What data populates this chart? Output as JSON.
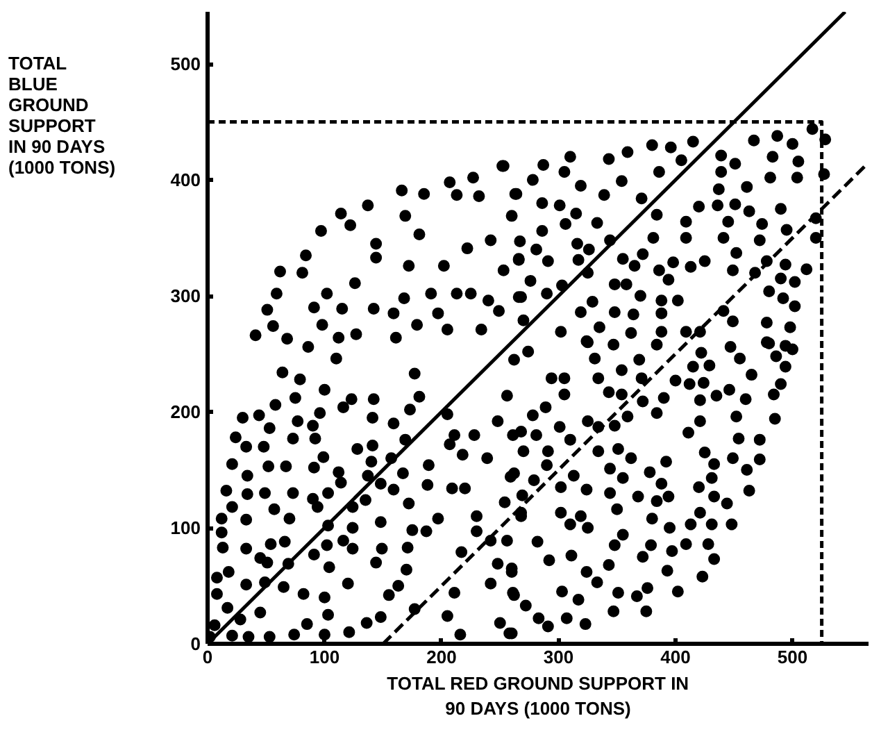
{
  "chart_data": {
    "type": "scatter",
    "xlabel": "TOTAL RED GROUND SUPPORT IN\n90 DAYS (1000 TONS)",
    "ylabel": "TOTAL\nBLUE\nGROUND\nSUPPORT\nIN 90 DAYS\n(1000 TONS)",
    "xlim": [
      0,
      565
    ],
    "ylim": [
      0,
      545
    ],
    "xticks": [
      0,
      100,
      200,
      300,
      400,
      500
    ],
    "yticks": [
      0,
      100,
      200,
      300,
      400,
      500
    ],
    "series": [
      {
        "marker": "circle",
        "color": "#000000",
        "x": [
          252,
          227,
          207,
          166,
          137,
          114,
          97,
          84,
          62,
          59,
          51,
          41,
          56,
          81,
          122,
          144,
          169,
          185,
          213,
          232,
          263,
          260,
          242,
          222,
          202,
          181,
          172,
          144,
          126,
          102,
          91,
          115,
          142,
          159,
          168,
          191,
          213,
          225,
          240,
          249,
          266,
          266,
          197,
          179,
          98,
          68,
          86,
          112,
          127,
          161,
          205,
          234,
          415,
          396,
          380,
          359,
          343,
          310,
          287,
          253,
          467,
          487,
          500,
          517,
          528,
          483,
          505,
          527,
          504,
          481,
          461,
          439,
          451,
          439,
          437,
          405,
          386,
          371,
          354,
          339,
          319,
          305,
          278,
          264,
          286,
          301,
          315,
          306,
          286,
          267,
          266,
          281,
          291,
          316,
          326,
          317,
          333,
          344,
          355,
          365,
          372,
          381,
          384,
          409,
          409,
          420,
          436,
          451,
          463,
          490,
          445,
          474,
          495,
          520,
          520,
          441,
          452,
          472,
          478,
          494,
          512,
          490,
          502,
          480,
          502,
          492,
          468,
          449,
          425,
          413,
          398,
          386,
          394,
          402,
          388,
          370,
          358,
          348,
          325,
          303,
          290,
          276,
          268,
          253,
          329,
          319,
          335,
          324,
          302,
          270,
          348,
          364,
          362,
          388,
          388,
          409,
          421,
          441,
          449,
          478,
          498,
          478,
          494,
          2,
          6,
          8,
          8,
          18,
          17,
          13,
          12,
          12,
          21,
          16,
          21,
          24,
          30,
          33,
          34,
          34,
          33,
          33,
          33,
          28,
          21,
          35,
          45,
          49,
          51,
          45,
          54,
          57,
          49,
          52,
          48,
          53,
          44,
          58,
          64,
          53,
          65,
          69,
          66,
          70,
          73,
          67,
          73,
          77,
          75,
          79,
          74,
          85,
          82,
          91,
          94,
          90,
          91,
          92,
          90,
          96,
          100,
          100,
          103,
          100,
          104,
          102,
          103,
          103,
          99,
          110,
          116,
          116,
          120,
          121,
          123,
          124,
          124,
          124,
          114,
          112,
          128,
          141,
          142,
          141,
          140,
          137,
          135,
          148,
          148,
          149,
          144,
          136,
          148,
          155,
          163,
          159,
          159,
          157,
          169,
          173,
          181,
          177,
          167,
          172,
          175,
          171,
          170,
          177,
          188,
          189,
          187,
          197,
          205,
          207,
          211,
          217,
          205,
          211,
          216,
          218,
          220,
          228,
          239,
          209,
          230,
          230,
          242,
          248,
          242,
          250,
          260,
          254,
          262,
          261,
          248,
          260,
          262,
          268,
          269,
          500,
          486,
          494,
          490,
          484,
          485,
          480,
          465,
          460,
          472,
          472,
          461,
          463,
          449,
          454,
          452,
          446,
          455,
          447,
          435,
          429,
          424,
          421,
          421,
          411,
          425,
          433,
          431,
          420,
          433,
          444,
          448,
          431,
          421,
          413,
          428,
          433,
          423,
          409,
          397,
          395,
          392,
          388,
          394,
          384,
          380,
          379,
          372,
          376,
          367,
          375,
          393,
          402,
          368,
          378,
          362,
          351,
          355,
          344,
          344,
          350,
          355,
          348,
          343,
          351,
          347,
          333,
          324,
          325,
          319,
          310,
          302,
          324,
          313,
          302,
          301,
          310,
          325,
          334,
          334,
          311,
          303,
          317,
          307,
          323,
          292,
          282,
          272,
          283,
          291,
          258,
          261,
          260,
          256,
          268,
          279,
          259,
          270,
          291,
          290,
          281,
          268,
          278,
          289,
          294,
          305,
          305,
          274,
          262,
          256,
          325,
          331,
          334,
          347,
          354,
          343,
          354,
          369,
          371,
          384,
          390,
          384,
          372,
          359,
          348,
          400,
          412,
          415,
          422
        ],
        "values": [
          412,
          402,
          398,
          391,
          378,
          371,
          356,
          335,
          321,
          302,
          288,
          266,
          274,
          320,
          361,
          345,
          369,
          388,
          387,
          386,
          388,
          369,
          348,
          341,
          326,
          353,
          326,
          333,
          311,
          302,
          290,
          289,
          289,
          285,
          298,
          302,
          302,
          302,
          296,
          287,
          299,
          331,
          285,
          275,
          275,
          263,
          256,
          264,
          267,
          264,
          271,
          271,
          433,
          428,
          430,
          424,
          418,
          420,
          413,
          412,
          434,
          438,
          431,
          444,
          435,
          420,
          416,
          405,
          402,
          402,
          394,
          421,
          414,
          407,
          392,
          417,
          407,
          384,
          399,
          387,
          395,
          407,
          400,
          388,
          380,
          378,
          371,
          362,
          356,
          347,
          332,
          340,
          330,
          345,
          340,
          331,
          363,
          348,
          332,
          326,
          336,
          350,
          370,
          364,
          350,
          377,
          378,
          379,
          373,
          375,
          364,
          362,
          357,
          367,
          350,
          350,
          337,
          348,
          330,
          327,
          323,
          315,
          312,
          304,
          291,
          298,
          320,
          322,
          330,
          325,
          329,
          322,
          314,
          296,
          296,
          300,
          310,
          310,
          320,
          309,
          302,
          313,
          299,
          322,
          295,
          286,
          273,
          261,
          269,
          279,
          286,
          284,
          268,
          285,
          269,
          269,
          269,
          287,
          278,
          277,
          273,
          260,
          257,
          6,
          16,
          43,
          57,
          62,
          31,
          83,
          96,
          108,
          118,
          132,
          155,
          178,
          195,
          170,
          145,
          129,
          107,
          82,
          51,
          21,
          7,
          6,
          27,
          53,
          70,
          74,
          86,
          116,
          130,
          153,
          170,
          186,
          197,
          206,
          234,
          6,
          49,
          69,
          88,
          108,
          130,
          153,
          177,
          192,
          212,
          228,
          8,
          17,
          43,
          77,
          118,
          125,
          152,
          177,
          188,
          199,
          219,
          40,
          25,
          8,
          66,
          85,
          102,
          130,
          161,
          246,
          204,
          89,
          52,
          10,
          211,
          118,
          100,
          82,
          139,
          148,
          168,
          195,
          211,
          171,
          157,
          145,
          124,
          138,
          105,
          82,
          70,
          18,
          23,
          42,
          50,
          133,
          190,
          160,
          176,
          202,
          213,
          233,
          147,
          121,
          98,
          83,
          64,
          30,
          137,
          154,
          97,
          108,
          198,
          172,
          180,
          79,
          24,
          44,
          8,
          163,
          134,
          180,
          160,
          134,
          110,
          97,
          89,
          69,
          52,
          18,
          9,
          122,
          147,
          180,
          192,
          62,
          42,
          110,
          128,
          254,
          248,
          239,
          224,
          215,
          194,
          259,
          232,
          211,
          176,
          159,
          150,
          132,
          160,
          177,
          196,
          219,
          246,
          256,
          214,
          240,
          225,
          210,
          192,
          182,
          165,
          155,
          143,
          135,
          127,
          121,
          103,
          103,
          113,
          103,
          86,
          73,
          58,
          86,
          80,
          100,
          157,
          138,
          127,
          123,
          108,
          85,
          75,
          48,
          41,
          28,
          63,
          45,
          127,
          148,
          160,
          168,
          143,
          151,
          130,
          116,
          94,
          85,
          68,
          44,
          28,
          53,
          62,
          100,
          110,
          103,
          113,
          133,
          145,
          135,
          187,
          176,
          192,
          187,
          166,
          76,
          45,
          38,
          22,
          17,
          72,
          88,
          33,
          22,
          15,
          9,
          44,
          65,
          89,
          113,
          141,
          144,
          166,
          166,
          154,
          180,
          183,
          197,
          204,
          229,
          229,
          215,
          252,
          245,
          214,
          260,
          246,
          229,
          258,
          236,
          217,
          215,
          245,
          229,
          258,
          212,
          199,
          209,
          196,
          188,
          227,
          224,
          239,
          251
        ]
      },
      {
        "type": "line",
        "line_style": "solid",
        "color": "#000000",
        "x": [
          0,
          545
        ],
        "values": [
          0,
          545
        ]
      },
      {
        "type": "line",
        "line_style": "dashed",
        "color": "#000000",
        "x": [
          150,
          563
        ],
        "values": [
          0,
          413
        ]
      },
      {
        "type": "line",
        "line_style": "dotted",
        "color": "#000000",
        "x": [
          0,
          525,
          525
        ],
        "values": [
          450,
          450,
          0
        ]
      }
    ]
  }
}
